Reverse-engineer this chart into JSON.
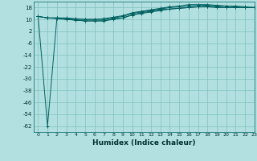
{
  "background_color": "#b2e0e0",
  "grid_color": "#80c0c0",
  "line_color": "#006060",
  "xlabel": "Humidex (Indice chaleur)",
  "xlabel_fontsize": 6.5,
  "yticks": [
    18,
    10,
    2,
    -6,
    -14,
    -22,
    -30,
    -38,
    -46,
    -54,
    -62
  ],
  "xticks": [
    0,
    1,
    2,
    3,
    4,
    5,
    6,
    7,
    8,
    9,
    10,
    11,
    12,
    13,
    14,
    15,
    16,
    17,
    18,
    19,
    20,
    21,
    22,
    23
  ],
  "ylim": [
    -66,
    22
  ],
  "xlim": [
    -0.5,
    23
  ],
  "line_dip": [
    12,
    -62,
    11,
    10,
    9.5,
    9,
    9,
    9,
    10.5,
    11,
    13,
    14.5,
    15.5,
    16.5,
    17,
    17.5,
    18,
    18.5,
    19,
    18.5,
    18,
    18,
    18,
    18
  ],
  "line_top1": [
    12,
    11,
    11,
    10.5,
    10,
    10,
    10,
    10,
    11,
    12,
    14,
    15,
    16,
    17,
    18,
    18.5,
    19,
    19.5,
    19.5,
    19,
    19,
    18.5,
    18,
    18
  ],
  "line_top2": [
    12,
    11,
    10.5,
    10,
    9.5,
    9,
    9,
    9,
    10,
    11,
    13,
    14,
    15,
    16,
    17,
    17.5,
    18,
    18.5,
    18.5,
    18,
    18,
    18,
    18,
    18
  ],
  "line_top3": [
    12,
    11,
    11,
    11,
    10.5,
    10,
    10,
    10.5,
    11.5,
    12.5,
    14.5,
    15.5,
    16.5,
    17.5,
    18.5,
    19,
    20,
    20,
    20,
    19.5,
    19,
    19,
    18.5,
    18
  ]
}
